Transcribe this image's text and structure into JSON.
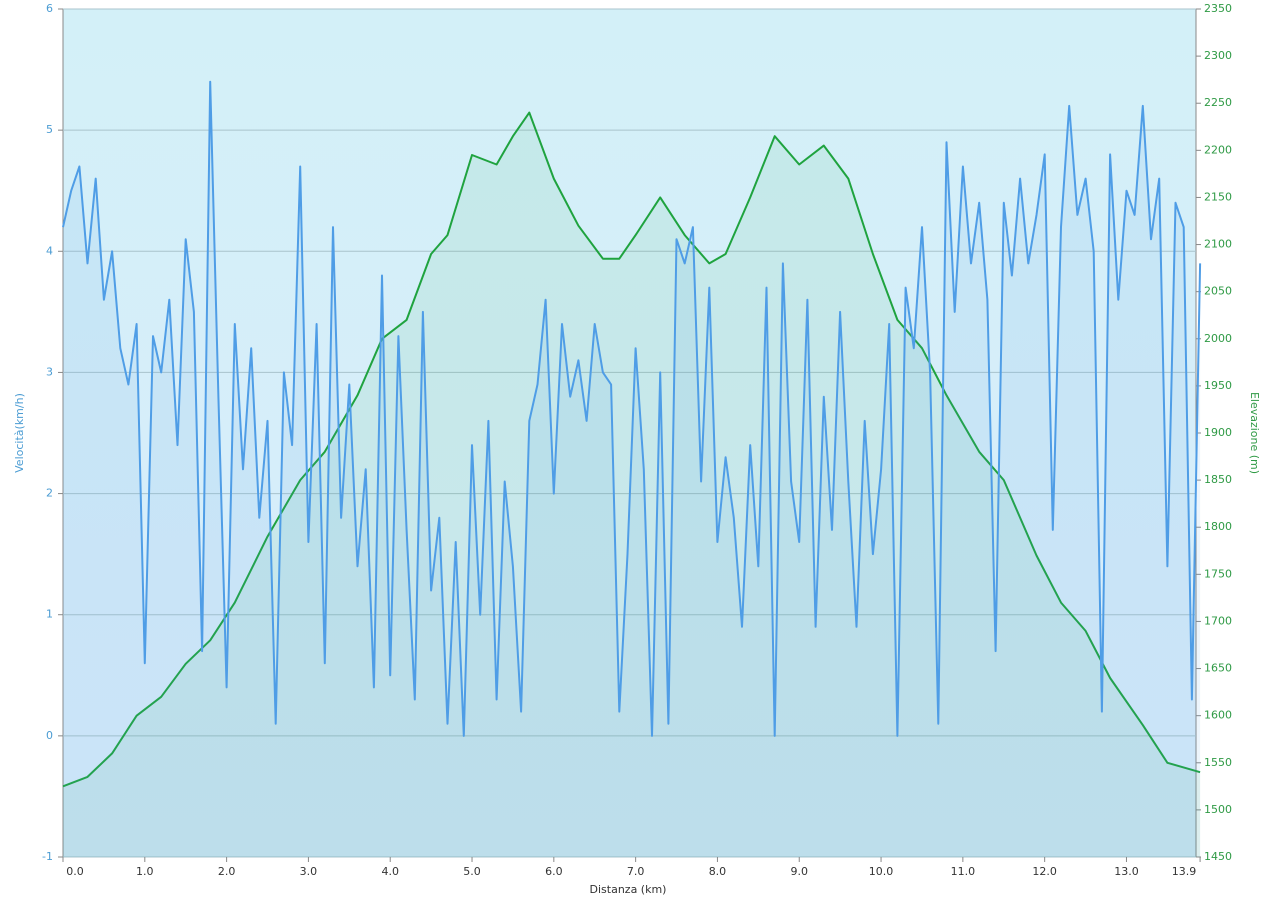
{
  "chart_data": {
    "type": "line",
    "y_label": "Velocità(km/h)",
    "y2_label": "Elevazione (m)",
    "x_label": "Distanza  (km)",
    "xlim": [
      0,
      13.85
    ],
    "xticks": [
      {
        "value": 0,
        "label": "0.0"
      },
      {
        "value": 1,
        "label": "1.0"
      },
      {
        "value": 2,
        "label": "2.0"
      },
      {
        "value": 3,
        "label": "3.0"
      },
      {
        "value": 4,
        "label": "4.0"
      },
      {
        "value": 5,
        "label": "5.0"
      },
      {
        "value": 6,
        "label": "6.0"
      },
      {
        "value": 7,
        "label": "7.0"
      },
      {
        "value": 8,
        "label": "8.0"
      },
      {
        "value": 9,
        "label": "9.0"
      },
      {
        "value": 10,
        "label": "10.0"
      },
      {
        "value": 11,
        "label": "11.0"
      },
      {
        "value": 12,
        "label": "12.0"
      },
      {
        "value": 13,
        "label": "13.0"
      },
      {
        "value": 13.9,
        "label": "13.9"
      }
    ],
    "ylim": [
      -1,
      6
    ],
    "yticks": [
      -1,
      0,
      1,
      2,
      3,
      4,
      5,
      6
    ],
    "y2lim": [
      1450,
      2350
    ],
    "y2ticks": [
      1450,
      1500,
      1550,
      1600,
      1650,
      1700,
      1750,
      1800,
      1850,
      1900,
      1950,
      2000,
      2050,
      2100,
      2150,
      2200,
      2250,
      2300,
      2350
    ],
    "grid": true,
    "series": [
      {
        "color": "#4f9de6",
        "axis": "y",
        "x": [
          0.0,
          0.1,
          0.2,
          0.3,
          0.4,
          0.5,
          0.6,
          0.7,
          0.8,
          0.9,
          1.0,
          1.1,
          1.2,
          1.3,
          1.4,
          1.5,
          1.6,
          1.7,
          1.8,
          1.9,
          2.0,
          2.1,
          2.2,
          2.3,
          2.4,
          2.5,
          2.6,
          2.7,
          2.8,
          2.9,
          3.0,
          3.1,
          3.2,
          3.3,
          3.4,
          3.5,
          3.6,
          3.7,
          3.8,
          3.9,
          4.0,
          4.1,
          4.2,
          4.3,
          4.4,
          4.5,
          4.6,
          4.7,
          4.8,
          4.9,
          5.0,
          5.1,
          5.2,
          5.3,
          5.4,
          5.5,
          5.6,
          5.7,
          5.8,
          5.9,
          6.0,
          6.1,
          6.2,
          6.3,
          6.4,
          6.5,
          6.6,
          6.7,
          6.8,
          6.9,
          7.0,
          7.1,
          7.2,
          7.3,
          7.4,
          7.5,
          7.6,
          7.7,
          7.8,
          7.9,
          8.0,
          8.1,
          8.2,
          8.3,
          8.4,
          8.5,
          8.6,
          8.7,
          8.8,
          8.9,
          9.0,
          9.1,
          9.2,
          9.3,
          9.4,
          9.5,
          9.6,
          9.7,
          9.8,
          9.9,
          10.0,
          10.1,
          10.2,
          10.3,
          10.4,
          10.5,
          10.6,
          10.7,
          10.8,
          10.9,
          11.0,
          11.1,
          11.2,
          11.3,
          11.4,
          11.5,
          11.6,
          11.7,
          11.8,
          11.9,
          12.0,
          12.1,
          12.2,
          12.3,
          12.4,
          12.5,
          12.6,
          12.7,
          12.8,
          12.9,
          13.0,
          13.1,
          13.2,
          13.3,
          13.4,
          13.5,
          13.6,
          13.7,
          13.8,
          13.9
        ],
        "values": [
          4.2,
          4.5,
          4.7,
          3.9,
          4.6,
          3.6,
          4.0,
          3.2,
          2.9,
          3.4,
          0.6,
          3.3,
          3.0,
          3.6,
          2.4,
          4.1,
          3.5,
          0.7,
          5.4,
          2.8,
          0.4,
          3.4,
          2.2,
          3.2,
          1.8,
          2.6,
          0.1,
          3.0,
          2.4,
          4.7,
          1.6,
          3.4,
          0.6,
          4.2,
          1.8,
          2.9,
          1.4,
          2.2,
          0.4,
          3.8,
          0.5,
          3.3,
          1.7,
          0.3,
          3.5,
          1.2,
          1.8,
          0.1,
          1.6,
          0.0,
          2.4,
          1.0,
          2.6,
          0.3,
          2.1,
          1.4,
          0.2,
          2.6,
          2.9,
          3.6,
          2.0,
          3.4,
          2.8,
          3.1,
          2.6,
          3.4,
          3.0,
          2.9,
          0.2,
          1.5,
          3.2,
          2.2,
          0.0,
          3.0,
          0.1,
          4.1,
          3.9,
          4.2,
          2.1,
          3.7,
          1.6,
          2.3,
          1.8,
          0.9,
          2.4,
          1.4,
          3.7,
          0.0,
          3.9,
          2.1,
          1.6,
          3.6,
          0.9,
          2.8,
          1.7,
          3.5,
          2.1,
          0.9,
          2.6,
          1.5,
          2.2,
          3.4,
          0.0,
          3.7,
          3.2,
          4.2,
          3.0,
          0.1,
          4.9,
          3.5,
          4.7,
          3.9,
          4.4,
          3.6,
          0.7,
          4.4,
          3.8,
          4.6,
          3.9,
          4.3,
          4.8,
          1.7,
          4.2,
          5.2,
          4.3,
          4.6,
          4.0,
          0.2,
          4.8,
          3.6,
          4.5,
          4.3,
          5.2,
          4.1,
          4.6,
          1.4,
          4.4,
          4.2,
          0.3,
          3.9
        ]
      },
      {
        "color": "#1fa33f",
        "axis": "y2",
        "x": [
          0.0,
          0.3,
          0.6,
          0.9,
          1.2,
          1.5,
          1.8,
          2.1,
          2.5,
          2.9,
          3.2,
          3.6,
          3.9,
          4.2,
          4.5,
          4.7,
          5.0,
          5.3,
          5.5,
          5.7,
          6.0,
          6.3,
          6.6,
          6.8,
          7.0,
          7.3,
          7.6,
          7.9,
          8.1,
          8.4,
          8.7,
          9.0,
          9.3,
          9.6,
          9.9,
          10.2,
          10.5,
          10.8,
          11.2,
          11.5,
          11.9,
          12.2,
          12.5,
          12.8,
          13.2,
          13.5,
          13.9
        ],
        "values": [
          1525,
          1535,
          1560,
          1600,
          1620,
          1655,
          1680,
          1720,
          1790,
          1850,
          1880,
          1940,
          2000,
          2020,
          2090,
          2110,
          2195,
          2185,
          2215,
          2240,
          2170,
          2120,
          2085,
          2085,
          2110,
          2150,
          2110,
          2080,
          2090,
          2150,
          2215,
          2185,
          2205,
          2170,
          2090,
          2020,
          1990,
          1940,
          1880,
          1850,
          1770,
          1720,
          1690,
          1640,
          1590,
          1550,
          1540
        ]
      }
    ]
  }
}
